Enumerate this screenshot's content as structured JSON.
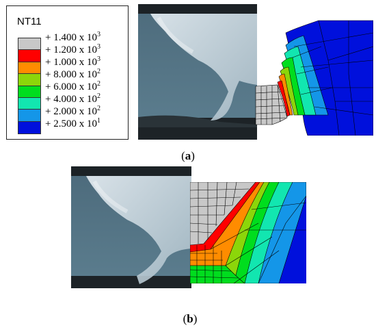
{
  "legend": {
    "title": "NT11",
    "entries": [
      {
        "text": "+ 1.400 x 10",
        "exp": "3",
        "color": "#c8c8c8"
      },
      {
        "text": "+ 1.200 x 10",
        "exp": "3",
        "color": "#ff0000"
      },
      {
        "text": "+ 1.000 x 10",
        "exp": "3",
        "color": "#ff8c00"
      },
      {
        "text": "+ 8.000 x 10",
        "exp": "2",
        "color": "#8cd60a"
      },
      {
        "text": "+ 6.000 x 10",
        "exp": "2",
        "color": "#00dd1e"
      },
      {
        "text": "+ 4.000 x 10",
        "exp": "2",
        "color": "#12e6b0"
      },
      {
        "text": "+ 2.000 x 10",
        "exp": "2",
        "color": "#1496e8"
      },
      {
        "text": "+ 2.500 x 10",
        "exp": "1",
        "color": "#0010dc"
      }
    ]
  },
  "captions": {
    "a_open": "(",
    "a_letter": "a",
    "a_close": ")",
    "b_open": "(",
    "b_letter": "b",
    "b_close": ")"
  },
  "colors": {
    "cold": "#0010dc",
    "light_blue": "#1496e8",
    "cyan": "#12e6b0",
    "green": "#00dd1e",
    "yellow_green": "#8cd60a",
    "orange": "#ff8c00",
    "red": "#ff0000",
    "melt_grey": "#c8c8c8"
  }
}
